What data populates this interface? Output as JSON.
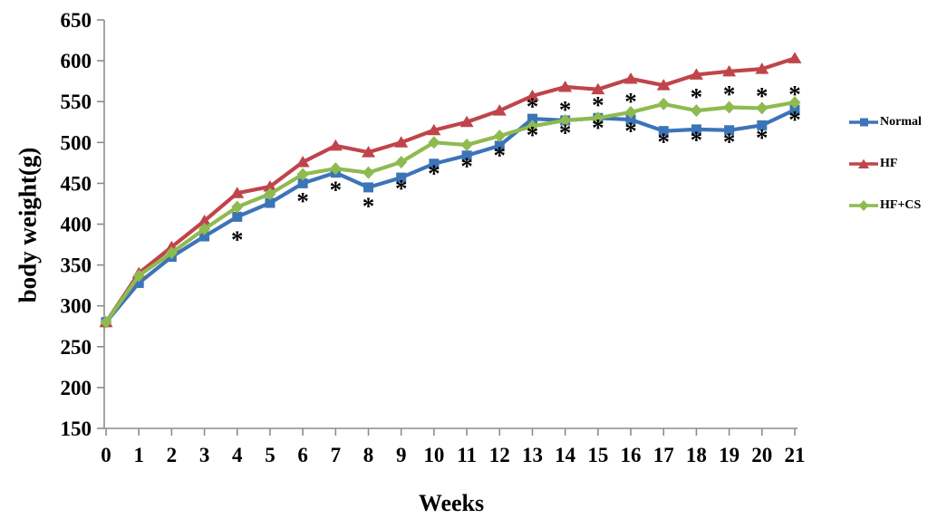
{
  "chart_data": {
    "type": "line",
    "title": "",
    "xlabel": "Weeks",
    "ylabel": "body weight(g)",
    "x_ticks": [
      0,
      1,
      2,
      3,
      4,
      5,
      6,
      7,
      8,
      9,
      10,
      11,
      12,
      13,
      14,
      15,
      16,
      17,
      18,
      19,
      20,
      21
    ],
    "y_ticks": [
      150,
      200,
      250,
      300,
      350,
      400,
      450,
      500,
      550,
      600,
      650
    ],
    "xlim": [
      0,
      21
    ],
    "ylim": [
      150,
      650
    ],
    "grid": false,
    "legend_position": "right",
    "axis_color": "#8c8c8c",
    "text_color": "#000000",
    "annotation_symbol": "*",
    "series": [
      {
        "name": "Normal",
        "color": "#3d74b8",
        "marker": "square",
        "values": [
          280,
          328,
          360,
          385,
          409,
          426,
          450,
          463,
          445,
          457,
          474,
          484,
          496,
          529,
          527,
          530,
          528,
          514,
          516,
          515,
          521,
          540
        ]
      },
      {
        "name": "HF",
        "color": "#c0444b",
        "marker": "triangle",
        "values": [
          280,
          340,
          372,
          404,
          438,
          446,
          476,
          496,
          488,
          500,
          515,
          525,
          539,
          557,
          568,
          565,
          578,
          570,
          583,
          587,
          590,
          603
        ]
      },
      {
        "name": "HF+CS",
        "color": "#8fba50",
        "marker": "diamond",
        "values": [
          280,
          337,
          365,
          394,
          421,
          437,
          461,
          468,
          463,
          476,
          500,
          497,
          508,
          520,
          527,
          530,
          537,
          547,
          539,
          543,
          542,
          549
        ]
      }
    ],
    "asterisks": [
      {
        "week": 4,
        "value": 381,
        "position": "below"
      },
      {
        "week": 6,
        "value": 428,
        "position": "below"
      },
      {
        "week": 7,
        "value": 442,
        "position": "below"
      },
      {
        "week": 8,
        "value": 422,
        "position": "below"
      },
      {
        "week": 9,
        "value": 444,
        "position": "below"
      },
      {
        "week": 10,
        "value": 462,
        "position": "below"
      },
      {
        "week": 11,
        "value": 471,
        "position": "below"
      },
      {
        "week": 12,
        "value": 484,
        "position": "below"
      },
      {
        "week": 13,
        "value": 509,
        "position": "below"
      },
      {
        "week": 14,
        "value": 512,
        "position": "below"
      },
      {
        "week": 15,
        "value": 518,
        "position": "below"
      },
      {
        "week": 16,
        "value": 514,
        "position": "below"
      },
      {
        "week": 17,
        "value": 501,
        "position": "below"
      },
      {
        "week": 18,
        "value": 503,
        "position": "below"
      },
      {
        "week": 19,
        "value": 501,
        "position": "below"
      },
      {
        "week": 20,
        "value": 506,
        "position": "below"
      },
      {
        "week": 21,
        "value": 528,
        "position": "below"
      },
      {
        "week": 13,
        "value": 544,
        "position": "above"
      },
      {
        "week": 14,
        "value": 540,
        "position": "above"
      },
      {
        "week": 15,
        "value": 546,
        "position": "above"
      },
      {
        "week": 16,
        "value": 550,
        "position": "above"
      },
      {
        "week": 18,
        "value": 556,
        "position": "above"
      },
      {
        "week": 19,
        "value": 559,
        "position": "above"
      },
      {
        "week": 20,
        "value": 557,
        "position": "above"
      },
      {
        "week": 21,
        "value": 559,
        "position": "above"
      }
    ]
  }
}
